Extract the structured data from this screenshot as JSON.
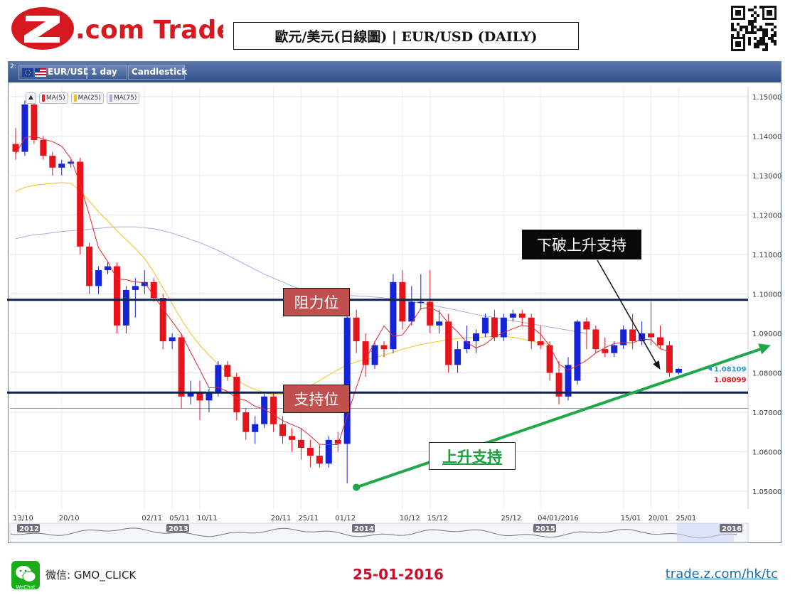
{
  "brand": {
    "logo_text": "Z.com Trade"
  },
  "header": {
    "title": "歐元/美元(日線圖) | EUR/USD  (DAILY)"
  },
  "toolbar": {
    "panel_number": "2:",
    "symbol": "EUR/USD",
    "interval": "1 day",
    "chart_type": "Candlestick"
  },
  "legend": {
    "items": [
      {
        "label": "MA(5)",
        "color": "#e8262b"
      },
      {
        "label": "MA(25)",
        "color": "#f2c21c"
      },
      {
        "label": "MA(75)",
        "color": "#a9a9e6"
      }
    ]
  },
  "annotations": {
    "resistance": "阻力位",
    "support": "支持位",
    "uptrend_support": "上升支持",
    "break_label": "下破上升支持"
  },
  "footer": {
    "wechat": "微信: GMO_CLICK",
    "wechat_badge": "WeChat",
    "date": "25-01-2016",
    "url": "trade.z.com/hk/tc"
  },
  "chart_data": {
    "type": "candlestick",
    "instrument": "EUR/USD",
    "interval": "1 day",
    "ylim": [
      1.0455,
      1.1525
    ],
    "y_ticks": [
      "1.15000",
      "1.14000",
      "1.13000",
      "1.12000",
      "1.11000",
      "1.10000",
      "1.09000",
      "1.08000",
      "1.07000",
      "1.06000",
      "1.05000"
    ],
    "x_ticks": [
      {
        "label": "13/10",
        "index": 0
      },
      {
        "label": "20/10",
        "index": 5
      },
      {
        "label": "02/11",
        "index": 14
      },
      {
        "label": "05/11",
        "index": 17
      },
      {
        "label": "10/11",
        "index": 20
      },
      {
        "label": "20/11",
        "index": 28
      },
      {
        "label": "25/11",
        "index": 31
      },
      {
        "label": "01/12",
        "index": 35
      },
      {
        "label": "10/12",
        "index": 42
      },
      {
        "label": "15/12",
        "index": 45
      },
      {
        "label": "25/12",
        "index": 53
      },
      {
        "label": "04/01/2016",
        "index": 57
      },
      {
        "label": "15/01",
        "index": 66
      },
      {
        "label": "20/01",
        "index": 69
      },
      {
        "label": "25/01",
        "index": 72
      }
    ],
    "navigator_labels": [
      "2012",
      "2013",
      "2014",
      "2015",
      "2016"
    ],
    "candles": [
      [
        1.138,
        1.142,
        1.134,
        1.136
      ],
      [
        1.136,
        1.149,
        1.135,
        1.148
      ],
      [
        1.148,
        1.1495,
        1.138,
        1.139
      ],
      [
        1.139,
        1.14,
        1.134,
        1.135
      ],
      [
        1.135,
        1.136,
        1.13,
        1.132
      ],
      [
        1.132,
        1.134,
        1.13,
        1.133
      ],
      [
        1.133,
        1.134,
        1.132,
        1.1335
      ],
      [
        1.1335,
        1.1345,
        1.11,
        1.112
      ],
      [
        1.112,
        1.113,
        1.1,
        1.102
      ],
      [
        1.102,
        1.107,
        1.1,
        1.106
      ],
      [
        1.106,
        1.108,
        1.105,
        1.107
      ],
      [
        1.107,
        1.108,
        1.09,
        1.092
      ],
      [
        1.092,
        1.102,
        1.09,
        1.101
      ],
      [
        1.101,
        1.104,
        1.094,
        1.102
      ],
      [
        1.102,
        1.106,
        1.1,
        1.103
      ],
      [
        1.103,
        1.104,
        1.098,
        1.099
      ],
      [
        1.099,
        1.1,
        1.086,
        1.088
      ],
      [
        1.088,
        1.09,
        1.086,
        1.089
      ],
      [
        1.089,
        1.09,
        1.071,
        1.074
      ],
      [
        1.074,
        1.078,
        1.072,
        1.075
      ],
      [
        1.075,
        1.078,
        1.068,
        1.073
      ],
      [
        1.073,
        1.076,
        1.07,
        1.075
      ],
      [
        1.075,
        1.083,
        1.074,
        1.082
      ],
      [
        1.082,
        1.083,
        1.078,
        1.079
      ],
      [
        1.079,
        1.08,
        1.068,
        1.07
      ],
      [
        1.07,
        1.071,
        1.063,
        1.065
      ],
      [
        1.065,
        1.069,
        1.062,
        1.067
      ],
      [
        1.067,
        1.075,
        1.066,
        1.074
      ],
      [
        1.074,
        1.075,
        1.065,
        1.067
      ],
      [
        1.067,
        1.069,
        1.062,
        1.064
      ],
      [
        1.064,
        1.066,
        1.06,
        1.063
      ],
      [
        1.063,
        1.066,
        1.058,
        1.061
      ],
      [
        1.061,
        1.063,
        1.056,
        1.059
      ],
      [
        1.059,
        1.062,
        1.056,
        1.057
      ],
      [
        1.057,
        1.064,
        1.056,
        1.063
      ],
      [
        1.063,
        1.065,
        1.06,
        1.062
      ],
      [
        1.062,
        1.098,
        1.052,
        1.094
      ],
      [
        1.094,
        1.096,
        1.085,
        1.088
      ],
      [
        1.088,
        1.09,
        1.079,
        1.082
      ],
      [
        1.082,
        1.088,
        1.081,
        1.087
      ],
      [
        1.087,
        1.088,
        1.084,
        1.086
      ],
      [
        1.086,
        1.105,
        1.085,
        1.103
      ],
      [
        1.103,
        1.106,
        1.091,
        1.093
      ],
      [
        1.093,
        1.102,
        1.092,
        1.098
      ],
      [
        1.098,
        1.105,
        1.096,
        1.098
      ],
      [
        1.098,
        1.106,
        1.09,
        1.092
      ],
      [
        1.092,
        1.096,
        1.09,
        1.093
      ],
      [
        1.093,
        1.095,
        1.08,
        1.082
      ],
      [
        1.082,
        1.088,
        1.08,
        1.086
      ],
      [
        1.086,
        1.092,
        1.085,
        1.088
      ],
      [
        1.088,
        1.091,
        1.085,
        1.09
      ],
      [
        1.09,
        1.095,
        1.089,
        1.094
      ],
      [
        1.094,
        1.096,
        1.088,
        1.089
      ],
      [
        1.089,
        1.095,
        1.088,
        1.094
      ],
      [
        1.094,
        1.096,
        1.093,
        1.095
      ],
      [
        1.095,
        1.096,
        1.092,
        1.094
      ],
      [
        1.094,
        1.095,
        1.086,
        1.088
      ],
      [
        1.088,
        1.092,
        1.086,
        1.087
      ],
      [
        1.087,
        1.088,
        1.078,
        1.08
      ],
      [
        1.08,
        1.083,
        1.072,
        1.074
      ],
      [
        1.074,
        1.084,
        1.073,
        1.082
      ],
      [
        1.078,
        1.0935,
        1.077,
        1.093
      ],
      [
        1.093,
        1.094,
        1.086,
        1.091
      ],
      [
        1.091,
        1.092,
        1.085,
        1.086
      ],
      [
        1.086,
        1.089,
        1.084,
        1.085
      ],
      [
        1.085,
        1.088,
        1.084,
        1.087
      ],
      [
        1.087,
        1.092,
        1.086,
        1.091
      ],
      [
        1.091,
        1.095,
        1.086,
        1.088
      ],
      [
        1.088,
        1.093,
        1.087,
        1.09
      ],
      [
        1.09,
        1.098,
        1.087,
        1.089
      ],
      [
        1.089,
        1.092,
        1.086,
        1.087
      ],
      [
        1.087,
        1.088,
        1.079,
        1.08
      ],
      [
        1.08,
        1.0812,
        1.0796,
        1.081
      ]
    ],
    "ma5": [
      1.1355,
      1.1395,
      1.14,
      1.1392,
      1.1386,
      1.1374,
      1.1343,
      1.1279,
      1.12,
      1.1117,
      1.1082,
      1.1038,
      1.1036,
      1.103,
      1.1029,
      1.0996,
      1.0962,
      1.093,
      1.0898,
      1.0852,
      1.0808,
      1.0762,
      1.0763,
      1.0753,
      1.0736,
      1.073,
      1.0715,
      1.0708,
      1.0694,
      1.0679,
      1.0669,
      1.0659,
      1.064,
      1.0619,
      1.0618,
      1.0618,
      1.069,
      1.0763,
      1.0833,
      1.0878,
      1.0919,
      1.0893,
      1.0896,
      1.0927,
      1.0963,
      1.0966,
      1.0954,
      1.0926,
      1.0904,
      1.0877,
      1.0863,
      1.0873,
      1.0891,
      1.0902,
      1.0912,
      1.092,
      1.0917,
      1.0898,
      1.0868,
      1.0822,
      1.0807,
      1.0818,
      1.0832,
      1.085,
      1.0864,
      1.0874,
      1.0877,
      1.0876,
      1.0885,
      1.0884,
      1.0861,
      1.0854
    ],
    "ma25": [
      1.126,
      1.127,
      1.1275,
      1.1278,
      1.128,
      1.1282,
      1.128,
      1.1262,
      1.1235,
      1.1208,
      1.1185,
      1.116,
      1.1138,
      1.1115,
      1.109,
      1.1055,
      1.1015,
      1.0975,
      1.0935,
      1.09,
      1.087,
      1.0845,
      1.0822,
      1.08,
      1.0782,
      1.0768,
      1.0758,
      1.075,
      1.0745,
      1.0745,
      1.075,
      1.0758,
      1.0768,
      1.078,
      1.0795,
      1.0808,
      1.082,
      1.0828,
      1.0834,
      1.0838,
      1.0845,
      1.0852,
      1.086,
      1.0866,
      1.0872,
      1.0876,
      1.088,
      1.0884,
      1.0887,
      1.0889,
      1.089,
      1.0891,
      1.0892,
      1.0892,
      1.089,
      1.0886,
      1.088,
      1.0876,
      1.0872
    ],
    "ma75": [
      1.114,
      1.1145,
      1.115,
      1.1152,
      1.1155,
      1.1158,
      1.116,
      1.1162,
      1.1164,
      1.1166,
      1.1168,
      1.117,
      1.117,
      1.117,
      1.1168,
      1.1165,
      1.116,
      1.1154,
      1.1146,
      1.1138,
      1.113,
      1.112,
      1.111,
      1.1098,
      1.1086,
      1.1074,
      1.1062,
      1.105,
      1.104,
      1.103,
      1.102,
      1.1012,
      1.1006,
      1.1002,
      1.0999,
      1.0997,
      1.0996,
      1.0995,
      1.0994,
      1.0992,
      1.099,
      1.0987,
      1.0984,
      1.098,
      1.0976,
      1.0972,
      1.0968,
      1.0963,
      1.0958,
      1.0953,
      1.0948,
      1.0944,
      1.094,
      1.0936,
      1.0932,
      1.0928,
      1.0924,
      1.092,
      1.0916,
      1.0912,
      1.0908,
      1.0904,
      1.09
    ],
    "resistance_level": 1.0985,
    "support_level": 1.075,
    "gray_level": 1.071,
    "trendline": {
      "start": {
        "index": 37,
        "price": 1.051
      },
      "end": {
        "index": 82,
        "price": 1.087
      }
    },
    "last_bid": "1.08109",
    "last_ask": "1.08099",
    "up_color": "#1424d6",
    "down_color": "#e8121a"
  }
}
